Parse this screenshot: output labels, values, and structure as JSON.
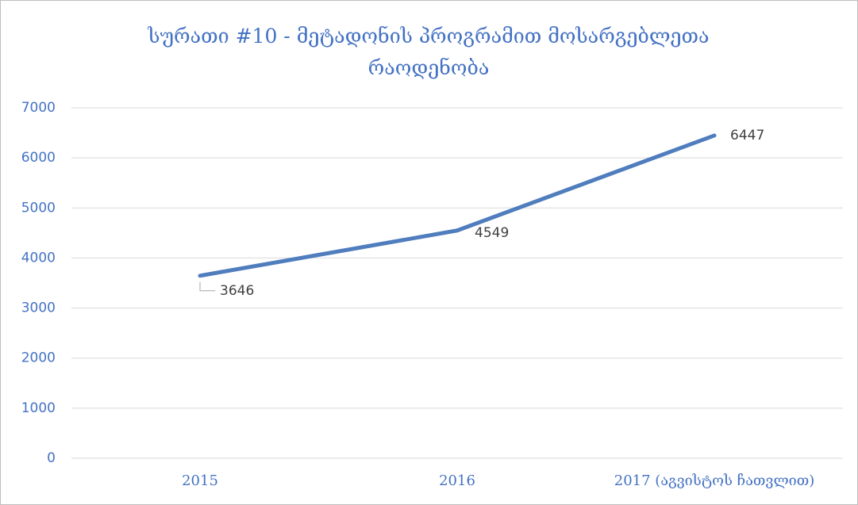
{
  "chart_data": {
    "type": "line",
    "title": "სურათი #10 - მეტადონის პროგრამით მოსარგებლეთა რაოდენობა",
    "categories": [
      "2015",
      "2016",
      "2017 (აგვისტოს ჩათვლით)"
    ],
    "values": [
      3646,
      4549,
      6447
    ],
    "color": "#4f7dbd",
    "ylim": [
      0,
      7000
    ],
    "yticks": [
      0,
      1000,
      2000,
      3000,
      4000,
      5000,
      6000,
      7000
    ],
    "grid": true
  }
}
